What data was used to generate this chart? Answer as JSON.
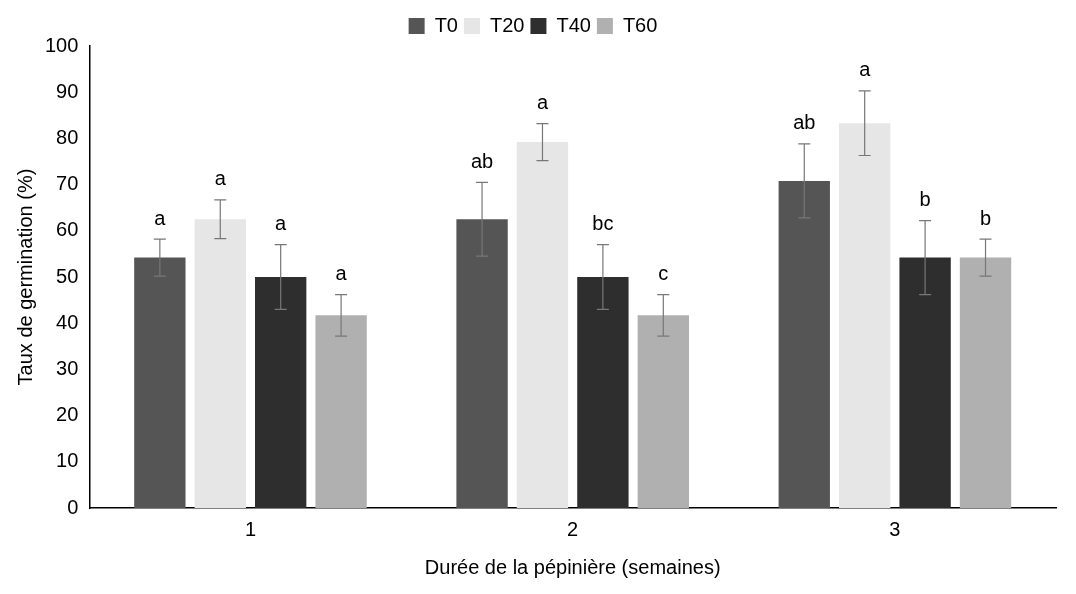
{
  "chart_data": {
    "type": "bar",
    "xlabel": "Durée de la pépinière (semaines)",
    "ylabel": "Taux de germination (%)",
    "categories": [
      "1",
      "2",
      "3"
    ],
    "series": [
      {
        "name": "T0",
        "color": "#555555",
        "values": [
          54.2,
          62.5,
          70.8
        ],
        "errors": [
          4,
          8,
          8
        ],
        "value_labels": [
          "a",
          "ab",
          "ab"
        ]
      },
      {
        "name": "T20",
        "color": "#e6e6e6",
        "values": [
          62.5,
          79.2,
          83.3
        ],
        "errors": [
          4.2,
          4,
          7
        ],
        "value_labels": [
          "a",
          "a",
          "a"
        ]
      },
      {
        "name": "T40",
        "color": "#2e2e2e",
        "values": [
          50,
          50,
          54.2
        ],
        "errors": [
          7,
          7,
          8
        ],
        "value_labels": [
          "a",
          "bc",
          "b"
        ]
      },
      {
        "name": "T60",
        "color": "#b0b0b0",
        "values": [
          41.7,
          41.7,
          54.2
        ],
        "errors": [
          4.5,
          4.5,
          4
        ],
        "value_labels": [
          "a",
          "c",
          "b"
        ]
      }
    ],
    "ylim": [
      0,
      100
    ],
    "yticks": [
      0,
      10,
      20,
      30,
      40,
      50,
      60,
      70,
      80,
      90,
      100
    ],
    "grid": false,
    "legend": "top"
  }
}
